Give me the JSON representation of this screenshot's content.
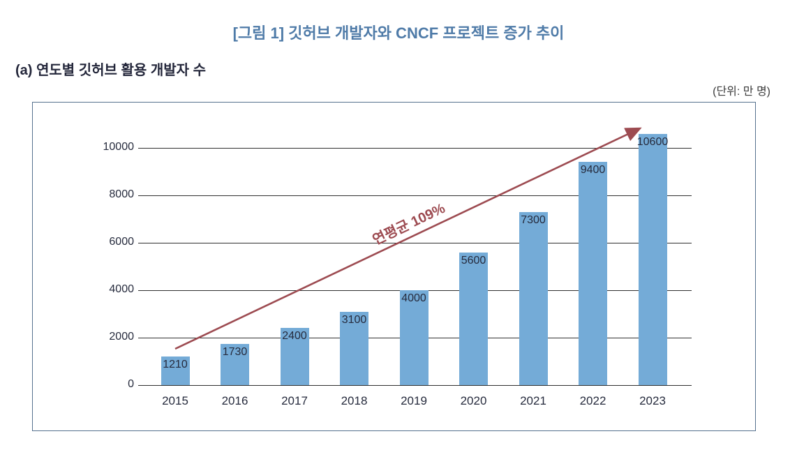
{
  "figure": {
    "title": "[그림 1] 깃허브 개발자와 CNCF 프로젝트 증가 추이",
    "panel_label": "(a) 연도별 깃허브 활용 개발자 수",
    "unit_label": "(단위: 만 명)"
  },
  "colors": {
    "title": "#4f7ba8",
    "panel_label": "#23263a",
    "unit_label": "#3b3b3b",
    "bar": "#74abd7",
    "arrow": "#9d4b51",
    "gridline": "#2f2f2f",
    "axis_text": "#262b3d",
    "frame_border": "#55718e"
  },
  "chart_data": {
    "type": "bar",
    "title": "(a) 연도별 깃허브 활용 개발자 수",
    "unit": "(단위: 만 명)",
    "categories": [
      "2015",
      "2016",
      "2017",
      "2018",
      "2019",
      "2020",
      "2021",
      "2022",
      "2023"
    ],
    "values": [
      1210,
      1730,
      2400,
      3100,
      4000,
      5600,
      7300,
      9400,
      10600
    ],
    "xlabel": "",
    "ylabel": "",
    "yticks": [
      0,
      2000,
      4000,
      6000,
      8000,
      10000
    ],
    "ylim": [
      0,
      11000
    ],
    "grid": true,
    "legend": false,
    "value_labels_position": "inside-top",
    "annotation": {
      "text": "연평균 109%",
      "type": "trend-arrow",
      "color": "#9d4b51"
    }
  }
}
